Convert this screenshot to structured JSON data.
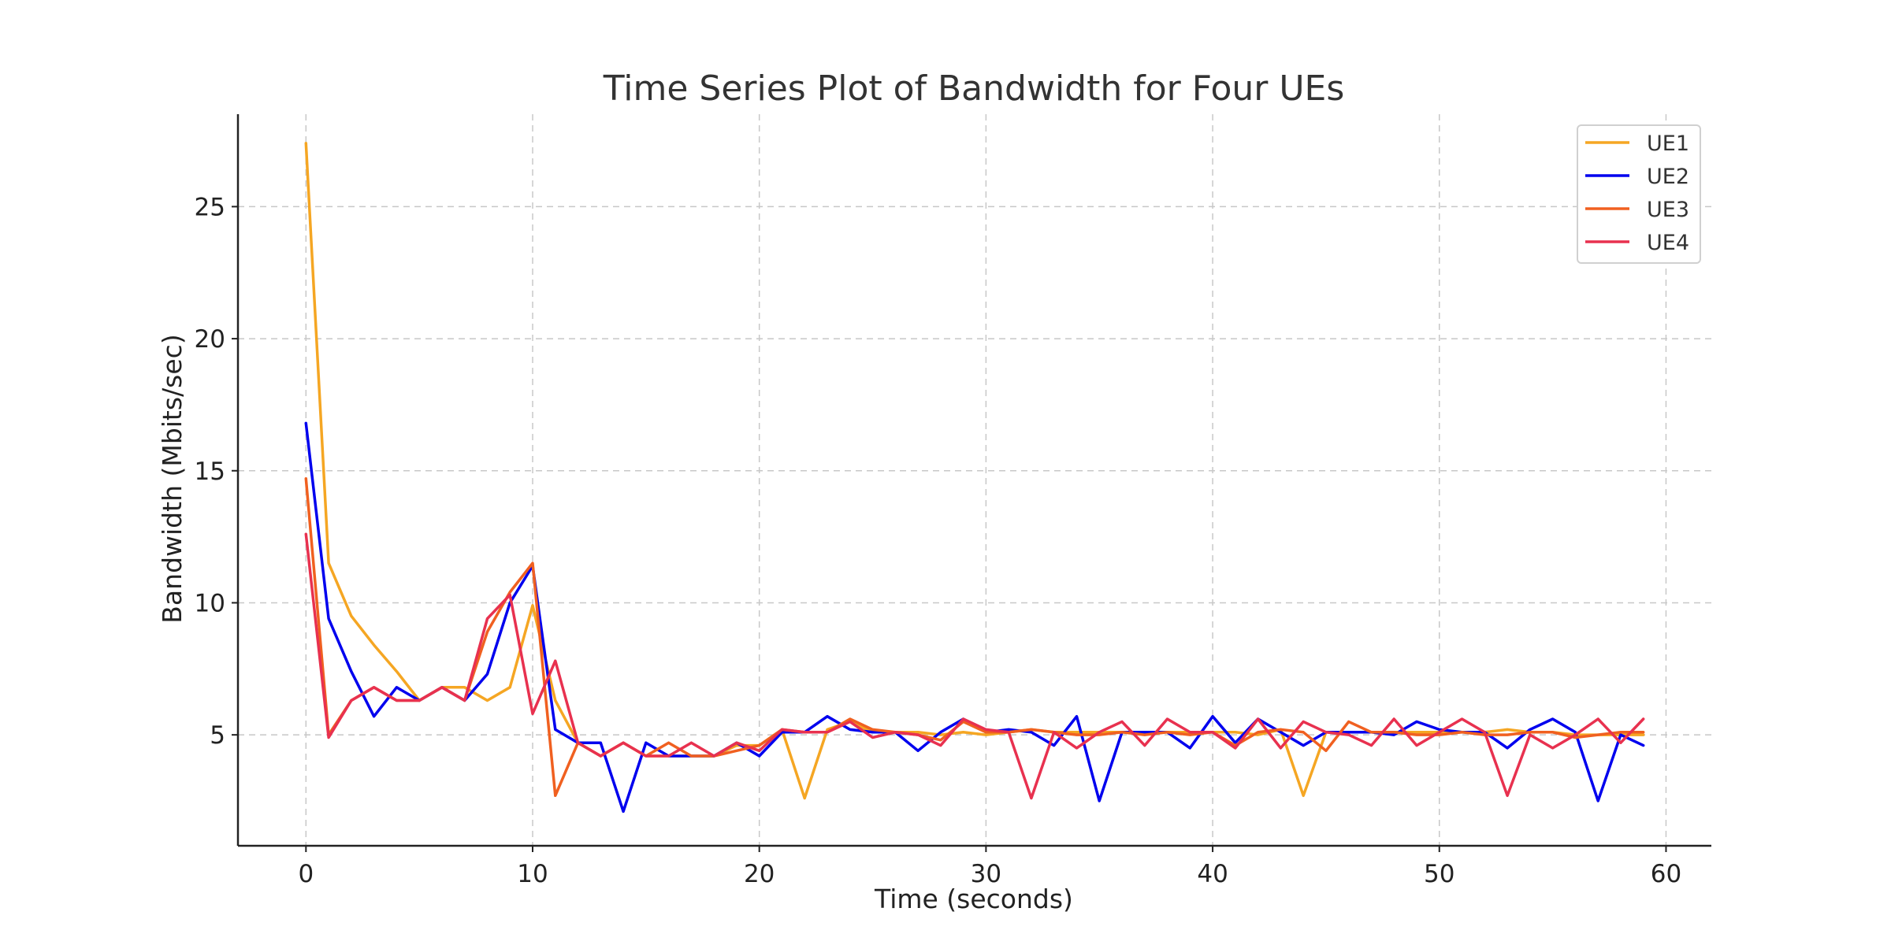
{
  "chart_data": {
    "type": "line",
    "title": "Time Series Plot of Bandwidth for Four UEs",
    "xlabel": "Time (seconds)",
    "ylabel": "Bandwidth (Mbits/sec)",
    "xlim": [
      -3,
      62
    ],
    "ylim": [
      0.8,
      28.5
    ],
    "xticks": [
      0,
      10,
      20,
      30,
      40,
      50,
      60
    ],
    "yticks": [
      5,
      10,
      15,
      20,
      25
    ],
    "grid": true,
    "legend_position": "top-right",
    "x": [
      0,
      1,
      2,
      3,
      4,
      5,
      6,
      7,
      8,
      9,
      10,
      11,
      12,
      13,
      14,
      15,
      16,
      17,
      18,
      19,
      20,
      21,
      22,
      23,
      24,
      25,
      26,
      27,
      28,
      29,
      30,
      31,
      32,
      33,
      34,
      35,
      36,
      37,
      38,
      39,
      40,
      41,
      42,
      43,
      44,
      45,
      46,
      47,
      48,
      49,
      50,
      51,
      52,
      53,
      54,
      55,
      56,
      57,
      58,
      59
    ],
    "series": [
      {
        "name": "UE1",
        "color": "#F5A623",
        "values": [
          27.4,
          11.5,
          9.5,
          8.4,
          7.4,
          6.3,
          6.8,
          6.8,
          6.3,
          6.8,
          9.9,
          6.3,
          4.7,
          4.2,
          4.7,
          4.2,
          4.2,
          4.2,
          4.2,
          4.6,
          4.6,
          5.2,
          2.6,
          5.2,
          5.5,
          5.1,
          5.1,
          5.1,
          5.0,
          5.1,
          5.0,
          5.1,
          5.2,
          5.1,
          5.1,
          5.1,
          5.1,
          5.1,
          5.1,
          5.1,
          5.1,
          5.1,
          5.0,
          5.2,
          2.7,
          5.1,
          5.1,
          5.1,
          5.1,
          5.1,
          5.1,
          5.1,
          5.1,
          5.2,
          5.1,
          5.1,
          5.0,
          5.0,
          5.0,
          5.0
        ]
      },
      {
        "name": "UE2",
        "color": "#0000EE",
        "values": [
          16.8,
          9.4,
          7.4,
          5.7,
          6.8,
          6.3,
          6.8,
          6.3,
          7.3,
          10.0,
          11.4,
          5.2,
          4.7,
          4.7,
          2.1,
          4.7,
          4.2,
          4.2,
          4.2,
          4.7,
          4.2,
          5.1,
          5.1,
          5.7,
          5.2,
          5.1,
          5.1,
          4.4,
          5.1,
          5.6,
          5.1,
          5.2,
          5.1,
          4.6,
          5.7,
          2.5,
          5.1,
          5.1,
          5.1,
          4.5,
          5.7,
          4.7,
          5.6,
          5.1,
          4.6,
          5.1,
          5.1,
          5.1,
          5.0,
          5.5,
          5.2,
          5.1,
          5.1,
          4.5,
          5.2,
          5.6,
          5.1,
          2.5,
          5.0,
          4.6
        ]
      },
      {
        "name": "UE3",
        "color": "#F06020",
        "values": [
          14.7,
          5.0,
          6.3,
          6.8,
          6.3,
          6.3,
          6.8,
          6.3,
          8.9,
          10.4,
          11.5,
          2.7,
          4.7,
          4.2,
          4.7,
          4.2,
          4.7,
          4.2,
          4.2,
          4.4,
          4.6,
          5.2,
          5.1,
          5.1,
          5.6,
          5.2,
          5.1,
          5.0,
          4.8,
          5.5,
          5.1,
          5.1,
          5.2,
          5.1,
          5.0,
          5.0,
          5.1,
          5.0,
          5.1,
          5.0,
          5.1,
          4.6,
          5.1,
          5.2,
          5.1,
          4.4,
          5.5,
          5.1,
          5.1,
          5.0,
          5.0,
          5.1,
          5.0,
          5.0,
          5.1,
          5.1,
          4.9,
          5.0,
          5.1,
          5.1
        ]
      },
      {
        "name": "UE4",
        "color": "#E8314F",
        "values": [
          12.6,
          4.9,
          6.3,
          6.8,
          6.3,
          6.3,
          6.8,
          6.3,
          9.4,
          10.3,
          5.8,
          7.8,
          4.7,
          4.2,
          4.7,
          4.2,
          4.2,
          4.7,
          4.2,
          4.7,
          4.4,
          5.2,
          5.1,
          5.1,
          5.5,
          4.9,
          5.1,
          5.0,
          4.6,
          5.6,
          5.2,
          5.1,
          2.6,
          5.1,
          4.5,
          5.1,
          5.5,
          4.6,
          5.6,
          5.1,
          5.1,
          4.5,
          5.6,
          4.5,
          5.5,
          5.1,
          5.0,
          4.6,
          5.6,
          4.6,
          5.1,
          5.6,
          5.1,
          2.7,
          5.0,
          4.5,
          5.0,
          5.6,
          4.7,
          5.6
        ]
      }
    ]
  }
}
